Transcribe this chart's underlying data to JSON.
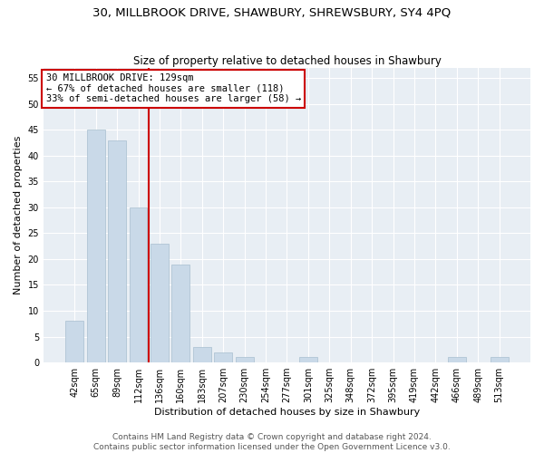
{
  "title1": "30, MILLBROOK DRIVE, SHAWBURY, SHREWSBURY, SY4 4PQ",
  "title2": "Size of property relative to detached houses in Shawbury",
  "xlabel": "Distribution of detached houses by size in Shawbury",
  "ylabel": "Number of detached properties",
  "bar_labels": [
    "42sqm",
    "65sqm",
    "89sqm",
    "112sqm",
    "136sqm",
    "160sqm",
    "183sqm",
    "207sqm",
    "230sqm",
    "254sqm",
    "277sqm",
    "301sqm",
    "325sqm",
    "348sqm",
    "372sqm",
    "395sqm",
    "419sqm",
    "442sqm",
    "466sqm",
    "489sqm",
    "513sqm"
  ],
  "bar_values": [
    8,
    45,
    43,
    30,
    23,
    19,
    3,
    2,
    1,
    0,
    0,
    1,
    0,
    0,
    0,
    0,
    0,
    0,
    1,
    0,
    1
  ],
  "bar_color": "#c9d9e8",
  "bar_edgecolor": "#a8bfcf",
  "vline_color": "#cc0000",
  "annotation_text": "30 MILLBROOK DRIVE: 129sqm\n← 67% of detached houses are smaller (118)\n33% of semi-detached houses are larger (58) →",
  "annotation_box_edgecolor": "#cc0000",
  "ylim": [
    0,
    57
  ],
  "yticks": [
    0,
    5,
    10,
    15,
    20,
    25,
    30,
    35,
    40,
    45,
    50,
    55
  ],
  "plot_bg_color": "#e8eef4",
  "footer1": "Contains HM Land Registry data © Crown copyright and database right 2024.",
  "footer2": "Contains public sector information licensed under the Open Government Licence v3.0.",
  "title1_fontsize": 9.5,
  "title2_fontsize": 8.5,
  "xlabel_fontsize": 8,
  "ylabel_fontsize": 8,
  "tick_fontsize": 7,
  "annot_fontsize": 7.5,
  "footer_fontsize": 6.5
}
